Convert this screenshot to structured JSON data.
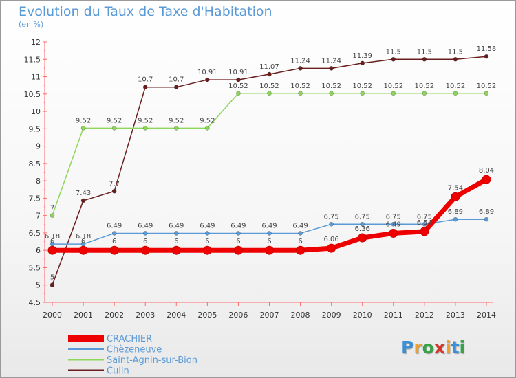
{
  "header": {
    "title": "Evolution du Taux de Taxe d'Habitation",
    "subtitle": "(en %)"
  },
  "logo": {
    "text": "Proxiti",
    "letters": [
      "P",
      "r",
      "o",
      "x",
      "i",
      "t",
      "i"
    ],
    "colors": [
      "#3a8fd6",
      "#f0a02a",
      "#3aa14a",
      "#d8352a",
      "#f0a02a",
      "#3a8fd6",
      "#3aa14a"
    ]
  },
  "chart_data": {
    "type": "line",
    "x": [
      "2000",
      "2001",
      "2002",
      "2003",
      "2004",
      "2005",
      "2006",
      "2007",
      "2008",
      "2009",
      "2010",
      "2011",
      "2012",
      "2013",
      "2014"
    ],
    "ylim": [
      4.5,
      12
    ],
    "yticks": [
      "4.5",
      "5",
      "5.5",
      "6",
      "6.5",
      "7",
      "7.5",
      "8",
      "8.5",
      "9",
      "9.5",
      "10",
      "10.5",
      "11",
      "11.5",
      "12"
    ],
    "grid": false,
    "legend": "bottom-left",
    "series": [
      {
        "name": "Culin",
        "color": "#6b1e1e",
        "values": [
          5,
          7.43,
          7.7,
          10.7,
          10.7,
          10.91,
          10.91,
          11.07,
          11.24,
          11.24,
          11.39,
          11.5,
          11.5,
          11.5,
          11.58
        ],
        "labels": [
          "5",
          "7.43",
          "7.7",
          "10.7",
          "10.7",
          "10.91",
          "10.91",
          "11.07",
          "11.24",
          "11.24",
          "11.39",
          "11.5",
          "11.5",
          "11.5",
          "11.58"
        ]
      },
      {
        "name": "Saint-Agnin-sur-Bion",
        "color": "#8ed65a",
        "values": [
          7,
          9.52,
          9.52,
          9.52,
          9.52,
          9.52,
          10.52,
          10.52,
          10.52,
          10.52,
          10.52,
          10.52,
          10.52,
          10.52,
          10.52
        ],
        "labels": [
          "7",
          "9.52",
          "9.52",
          "9.52",
          "9.52",
          "9.52",
          "10.52",
          "10.52",
          "10.52",
          "10.52",
          "10.52",
          "10.52",
          "10.52",
          "10.52",
          "10.52"
        ]
      },
      {
        "name": "Chèzeneuve",
        "color": "#5a9ad6",
        "values": [
          6.18,
          6.18,
          6.49,
          6.49,
          6.49,
          6.49,
          6.49,
          6.49,
          6.49,
          6.75,
          6.75,
          6.75,
          6.75,
          6.89,
          6.89
        ],
        "labels": [
          "6.18",
          "6.18",
          "6.49",
          "6.49",
          "6.49",
          "6.49",
          "6.49",
          "6.49",
          "6.49",
          "6.75",
          "6.75",
          "6.75",
          "6.75",
          "6.89",
          "6.89"
        ]
      },
      {
        "name": "CRACHIER",
        "color": "#ee0000",
        "values": [
          6,
          6,
          6,
          6,
          6,
          6,
          6,
          6,
          6,
          6.06,
          6.36,
          6.49,
          6.54,
          7.54,
          8.04
        ],
        "labels": [
          "6",
          "6",
          "6",
          "6",
          "6",
          "6",
          "6",
          "6",
          "6",
          "6.06",
          "6.36",
          "6.49",
          "6.54",
          "7.54",
          "8.04"
        ]
      }
    ],
    "legend_order": [
      "CRACHIER",
      "Chèzeneuve",
      "Saint-Agnin-sur-Bion",
      "Culin"
    ]
  }
}
